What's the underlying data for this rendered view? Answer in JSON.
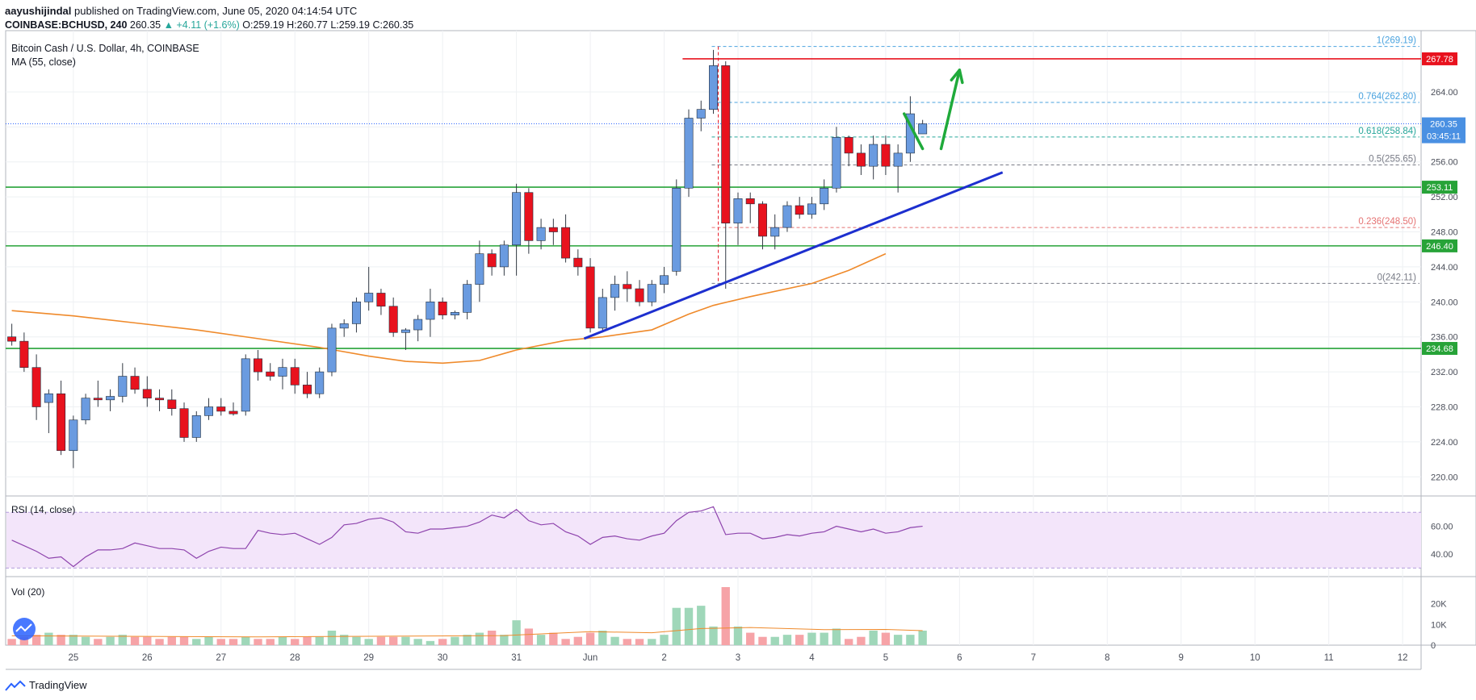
{
  "header": {
    "author": "aayushijindal",
    "published_text": "published on TradingView.com, June 05, 2020 04:14:54 UTC",
    "symbol": "COINBASE:BCHUSD, 240",
    "last": "260.35",
    "change": "▲ +4.11 (+1.6%)",
    "ohlc": "O:259.19 H:260.77 L:259.19 C:260.35"
  },
  "footer": {
    "brand": "TradingView"
  },
  "colors": {
    "up": "#6a9be0",
    "down": "#e8121e",
    "ma": "#ef8a2b",
    "support": "#27a338",
    "resistance": "#e8121e",
    "trend": "#1d2fcf",
    "arrow": "#1faa3a",
    "rsi": "#8e44ad",
    "vol_up": "#9fd7b9",
    "vol_down": "#f6a3a7"
  },
  "chart_data": [
    {
      "type": "candlestick",
      "title": "Bitcoin Cash / U.S. Dollar, 4h, COINBASE",
      "indicator_label": "MA (55, close)",
      "ylim": [
        218,
        271
      ],
      "y_ticks": [
        220,
        224,
        228,
        232,
        236,
        240,
        244,
        248,
        252,
        256,
        260,
        264
      ],
      "y_tick_labels": [
        "220.00",
        "224.00",
        "228.00",
        "232.00",
        "236.00",
        "240.00",
        "244.00",
        "248.00",
        "252.00",
        "256.00",
        "260.00",
        "264.00"
      ],
      "x_labels": [
        {
          "bar": 5,
          "label": "25"
        },
        {
          "bar": 11,
          "label": "26"
        },
        {
          "bar": 17,
          "label": "27"
        },
        {
          "bar": 23,
          "label": "28"
        },
        {
          "bar": 29,
          "label": "29"
        },
        {
          "bar": 35,
          "label": "30"
        },
        {
          "bar": 41,
          "label": "31"
        },
        {
          "bar": 47,
          "label": "Jun"
        },
        {
          "bar": 53,
          "label": "2"
        },
        {
          "bar": 59,
          "label": "3"
        },
        {
          "bar": 65,
          "label": "4"
        },
        {
          "bar": 71,
          "label": "5"
        },
        {
          "bar": 77,
          "label": "6"
        },
        {
          "bar": 83,
          "label": "7"
        },
        {
          "bar": 89,
          "label": "8"
        },
        {
          "bar": 95,
          "label": "9"
        },
        {
          "bar": 101,
          "label": "10"
        },
        {
          "bar": 107,
          "label": "11"
        },
        {
          "bar": 113,
          "label": "12"
        }
      ],
      "bars_visible": 115,
      "candles": [
        [
          236,
          237.5,
          235,
          235.5
        ],
        [
          235.5,
          236.5,
          232,
          232.5
        ],
        [
          232.5,
          234,
          226.5,
          228
        ],
        [
          228.5,
          230,
          225,
          229.5
        ],
        [
          229.5,
          231,
          222.5,
          223
        ],
        [
          223,
          227,
          221,
          226.5
        ],
        [
          226.5,
          229.5,
          226,
          229
        ],
        [
          229,
          231,
          228,
          228.8
        ],
        [
          228.8,
          230,
          227.5,
          229.2
        ],
        [
          229.2,
          233,
          228.5,
          231.5
        ],
        [
          231.5,
          232.5,
          229.5,
          230
        ],
        [
          230,
          231.5,
          228,
          229
        ],
        [
          229,
          230,
          227.5,
          228.8
        ],
        [
          228.8,
          230,
          227,
          227.8
        ],
        [
          227.8,
          228.5,
          224,
          224.5
        ],
        [
          224.5,
          227.5,
          224,
          227
        ],
        [
          227,
          229,
          226.5,
          228
        ],
        [
          228,
          229,
          227,
          227.5
        ],
        [
          227.5,
          228.5,
          227,
          227.2
        ],
        [
          227.5,
          234,
          227,
          233.5
        ],
        [
          233.5,
          234.5,
          231,
          232
        ],
        [
          232,
          233,
          231,
          231.5
        ],
        [
          231.5,
          233.5,
          230,
          232.5
        ],
        [
          232.5,
          233.5,
          229.5,
          230.5
        ],
        [
          230.5,
          232,
          229,
          229.5
        ],
        [
          229.5,
          232.5,
          229,
          232
        ],
        [
          232,
          237.5,
          231.5,
          237
        ],
        [
          237,
          238,
          236,
          237.5
        ],
        [
          237.5,
          240.5,
          236.5,
          240
        ],
        [
          240,
          244,
          239,
          241
        ],
        [
          241,
          241.5,
          238.5,
          239.5
        ],
        [
          239.5,
          240.5,
          236,
          236.5
        ],
        [
          236.5,
          237,
          234.5,
          236.8
        ],
        [
          236.8,
          238.5,
          235.5,
          238
        ],
        [
          238,
          241.5,
          236,
          240
        ],
        [
          240,
          240.5,
          238,
          238.5
        ],
        [
          238.5,
          239,
          238,
          238.8
        ],
        [
          238.8,
          242.5,
          238,
          242
        ],
        [
          242,
          247,
          240,
          245.5
        ],
        [
          245.5,
          246,
          243,
          244
        ],
        [
          244,
          247,
          243,
          246.5
        ],
        [
          246.5,
          253.5,
          243,
          252.5
        ],
        [
          252.5,
          253,
          245.5,
          247
        ],
        [
          247,
          249.5,
          246,
          248.5
        ],
        [
          248.5,
          249.5,
          246.5,
          248
        ],
        [
          248.5,
          250,
          244.5,
          245
        ],
        [
          245,
          246,
          243,
          244
        ],
        [
          244,
          245,
          236.5,
          237
        ],
        [
          237,
          241.5,
          236.5,
          240.5
        ],
        [
          240.5,
          243,
          239,
          242
        ],
        [
          242,
          243.5,
          240,
          241.5
        ],
        [
          241.5,
          242.5,
          239.5,
          240
        ],
        [
          240,
          242.5,
          239.5,
          242
        ],
        [
          242,
          244,
          241,
          243
        ],
        [
          243.5,
          254,
          243,
          253
        ],
        [
          253,
          262,
          252,
          261
        ],
        [
          261,
          263,
          259.5,
          262
        ],
        [
          262,
          268.8,
          261.5,
          267
        ],
        [
          267,
          267.5,
          241.5,
          249
        ],
        [
          249,
          252.5,
          246.5,
          251.8
        ],
        [
          251.8,
          252.5,
          249,
          251.2
        ],
        [
          251.2,
          251.5,
          246,
          247.5
        ],
        [
          247.5,
          250,
          246,
          248.5
        ],
        [
          248.5,
          251.5,
          248,
          251
        ],
        [
          251,
          252,
          249.5,
          250
        ],
        [
          250,
          252,
          249.5,
          251.2
        ],
        [
          251.2,
          254,
          250.5,
          253
        ],
        [
          253,
          260,
          252.5,
          258.8
        ],
        [
          258.8,
          259,
          255.5,
          257
        ],
        [
          257,
          258,
          254.5,
          255.5
        ],
        [
          255.5,
          259,
          254,
          258
        ],
        [
          258,
          259,
          254.5,
          255.5
        ],
        [
          255.5,
          258,
          252.5,
          257
        ],
        [
          257,
          263.5,
          256,
          261.5
        ],
        [
          259.2,
          260.8,
          259.2,
          260.35
        ]
      ],
      "ma55": [
        [
          0,
          239
        ],
        [
          5,
          238.4
        ],
        [
          10,
          237.6
        ],
        [
          15,
          236.8
        ],
        [
          20,
          235.8
        ],
        [
          25,
          234.8
        ],
        [
          29,
          233.8
        ],
        [
          32,
          233.2
        ],
        [
          35,
          233.0
        ],
        [
          38,
          233.3
        ],
        [
          41,
          234.5
        ],
        [
          45,
          235.6
        ],
        [
          48,
          236.0
        ],
        [
          52,
          236.8
        ],
        [
          55,
          238.6
        ],
        [
          57,
          239.6
        ],
        [
          60,
          240.6
        ],
        [
          65,
          242.1
        ],
        [
          68,
          243.6
        ],
        [
          71,
          245.5
        ]
      ],
      "levels": [
        {
          "value": 267.78,
          "label": "267.78",
          "kind": "resistance"
        },
        {
          "value": 253.11,
          "label": "253.11",
          "kind": "support"
        },
        {
          "value": 246.4,
          "label": "246.40",
          "kind": "support"
        },
        {
          "value": 234.68,
          "label": "234.68",
          "kind": "support"
        }
      ],
      "price_tags": [
        {
          "value": 260.35,
          "label": "260.35"
        },
        {
          "value": 258.84,
          "label": "03:45:11"
        }
      ],
      "fib": [
        {
          "ratio": "1",
          "value": 269.19,
          "label": "1(269.19)",
          "color": "#4aa3df"
        },
        {
          "ratio": "0.764",
          "value": 262.8,
          "label": "0.764(262.80)",
          "color": "#4aa3df"
        },
        {
          "ratio": "0.618",
          "value": 258.84,
          "label": "0.618(258.84)",
          "color": "#26a69a"
        },
        {
          "ratio": "0.5",
          "value": 255.65,
          "label": "0.5(255.65)",
          "color": "#787b86"
        },
        {
          "ratio": "0.236",
          "value": 248.5,
          "label": "0.236(248.50)",
          "color": "#e57373"
        },
        {
          "ratio": "0",
          "value": 242.11,
          "label": "0(242.11)",
          "color": "#787b86"
        }
      ],
      "trendline": [
        [
          46.5,
          235.8
        ],
        [
          80.5,
          254.8
        ]
      ],
      "arrows": [
        {
          "from": [
            72.5,
            261.5
          ],
          "to": [
            74,
            257.5
          ]
        },
        {
          "from": [
            75.5,
            257.5
          ],
          "to": [
            77,
            266.5
          ]
        }
      ]
    },
    {
      "type": "line",
      "title": "RSI (14, close)",
      "ylim": [
        25,
        80
      ],
      "y_ticks": [
        40,
        60
      ],
      "y_tick_labels": [
        "40.00",
        "60.00"
      ],
      "band": [
        30,
        70
      ],
      "values": [
        50,
        46,
        42,
        37,
        38,
        31,
        38,
        43,
        43,
        44,
        48,
        46,
        44,
        44,
        43,
        37,
        42,
        45,
        44,
        44,
        57,
        55,
        54,
        55,
        51,
        47,
        52,
        61,
        62,
        65,
        66,
        63,
        56,
        55,
        58,
        58,
        59,
        60,
        63,
        68,
        66,
        72,
        64,
        61,
        62,
        56,
        53,
        47,
        52,
        53,
        51,
        50,
        53,
        55,
        64,
        70,
        71,
        74,
        54,
        55,
        55,
        51,
        52,
        54,
        53,
        55,
        56,
        60,
        58,
        56,
        58,
        55,
        56,
        59,
        60
      ]
    },
    {
      "type": "bar",
      "title": "Vol (20)",
      "ylim": [
        0,
        28
      ],
      "y_ticks": [
        0,
        10,
        20
      ],
      "y_tick_labels": [
        "0",
        "10K",
        "20K"
      ],
      "values": [
        3,
        4,
        5,
        6,
        5,
        5,
        4,
        3,
        4,
        5,
        4,
        4,
        3,
        4,
        4,
        3,
        4,
        3,
        3,
        4,
        3,
        3,
        4,
        3,
        4,
        4,
        7,
        5,
        4,
        3,
        4,
        4,
        4,
        3,
        2,
        3,
        4,
        5,
        6,
        7,
        5,
        12,
        8,
        5,
        6,
        3,
        4,
        6,
        7,
        4,
        3,
        3,
        3,
        5,
        18,
        18,
        19,
        9,
        28,
        9,
        6,
        4,
        4,
        5,
        5,
        6,
        6,
        8,
        3,
        4,
        7,
        6,
        5,
        5,
        7
      ],
      "ma20": [
        [
          0,
          4.5
        ],
        [
          20,
          4.0
        ],
        [
          40,
          4.6
        ],
        [
          47,
          6.5
        ],
        [
          52,
          6.0
        ],
        [
          56,
          8.0
        ],
        [
          60,
          8.5
        ],
        [
          66,
          7.5
        ],
        [
          71,
          7.6
        ],
        [
          74,
          7.0
        ]
      ]
    }
  ]
}
